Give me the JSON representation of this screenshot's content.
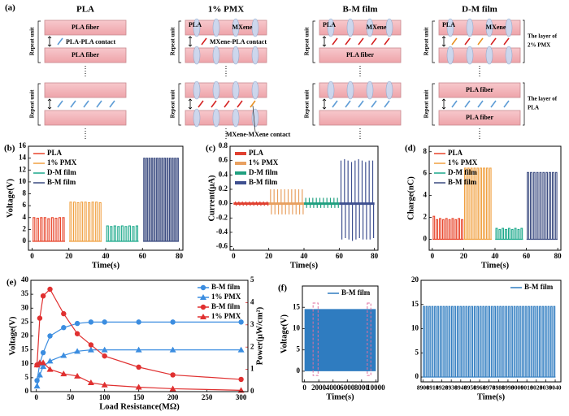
{
  "schematic": {
    "label": "(a)",
    "titles": [
      "PLA",
      "1% PMX",
      "B-M film",
      "D-M film"
    ],
    "pla_fiber": "PLA fiber",
    "repeat_unit": "Repeat unit",
    "pla_pla_contact": "PLA-PLA contact",
    "pla": "PLA",
    "mxene": "MXene",
    "mxene_pla_contact": "MXene-PLA contact",
    "mxene_mxene_contact": "MXene-MXene contact",
    "layer_pmx": [
      "The layer of",
      "2% PMX"
    ],
    "layer_pla": [
      "The layer of",
      "PLA"
    ]
  },
  "chart_data": [
    {
      "type": "pulse",
      "label": "(b)",
      "xlabel": "Time(s)",
      "ylabel": "Voltage(V)",
      "xlim": [
        -2,
        82
      ],
      "ylim": [
        -1.5,
        16
      ],
      "xticks": [
        0,
        20,
        40,
        60,
        80
      ],
      "yticks": [
        0,
        2,
        4,
        6,
        8,
        10,
        12,
        14,
        16
      ],
      "legend": "upper left",
      "series": [
        {
          "name": "PLA",
          "color": "#e8442a",
          "x": [
            1,
            3,
            5,
            7,
            9,
            11,
            13,
            15,
            17
          ],
          "values": [
            4.0,
            3.9,
            4.0,
            4.0,
            3.8,
            4.0,
            3.9,
            4.0,
            4.0
          ]
        },
        {
          "name": "1% PMX",
          "color": "#f0a040",
          "x": [
            21,
            23,
            25,
            27,
            29,
            31,
            33,
            35,
            37
          ],
          "values": [
            6.6,
            6.6,
            6.5,
            6.6,
            6.6,
            6.5,
            6.6,
            6.6,
            6.5
          ]
        },
        {
          "name": "D-M film",
          "color": "#1aa88a",
          "x": [
            41,
            43,
            45,
            47,
            49,
            51,
            53,
            55,
            57
          ],
          "values": [
            2.6,
            2.5,
            2.6,
            2.5,
            2.6,
            2.5,
            2.6,
            2.5,
            2.6
          ]
        },
        {
          "name": "B-M film",
          "color": "#3b4b80",
          "x": [
            61,
            62.4,
            63.8,
            65.2,
            66.6,
            68,
            69.4,
            70.8,
            72.2,
            73.6,
            75,
            76.4,
            77.8,
            79.2
          ],
          "values": [
            14,
            14,
            14,
            14,
            14,
            14,
            14,
            14,
            14,
            14,
            14,
            14,
            14,
            14
          ]
        }
      ]
    },
    {
      "type": "spike",
      "label": "(c)",
      "xlabel": "Time(s)",
      "ylabel": "Current(μA)",
      "xlim": [
        -2,
        82
      ],
      "ylim": [
        -0.65,
        0.8
      ],
      "xticks": [
        0,
        20,
        40,
        60,
        80
      ],
      "yticks": [
        -0.6,
        -0.4,
        -0.2,
        {
          "value": 0,
          "label": "0.0"
        },
        0.2,
        0.4,
        0.6,
        0.8
      ],
      "legend": "upper left",
      "series": [
        {
          "name": "PLA",
          "color": "#e04030",
          "x": [
            1,
            3,
            5,
            7,
            9,
            11,
            13,
            15,
            17,
            19
          ],
          "values": [
            0.03,
            0.03,
            0.03,
            0.03,
            0.03,
            0.03,
            0.03,
            0.03,
            0.03,
            0.03
          ],
          "troughs": [
            -0.03,
            -0.03,
            -0.03,
            -0.03,
            -0.03,
            -0.03,
            -0.03,
            -0.03,
            -0.03,
            -0.03
          ]
        },
        {
          "name": "1% PMX",
          "color": "#e8a060",
          "x": [
            21,
            23,
            25,
            27,
            29,
            31,
            33,
            35,
            37,
            39
          ],
          "values": [
            0.2,
            0.2,
            0.2,
            0.2,
            0.2,
            0.2,
            0.2,
            0.2,
            0.2,
            0.2
          ],
          "troughs": [
            -0.15,
            -0.15,
            -0.15,
            -0.15,
            -0.15,
            -0.15,
            -0.15,
            -0.15,
            -0.15,
            -0.15
          ]
        },
        {
          "name": "D-M film",
          "color": "#20a080",
          "x": [
            41,
            43,
            45,
            47,
            49,
            51,
            53,
            55,
            57,
            59
          ],
          "values": [
            0.08,
            0.08,
            0.08,
            0.08,
            0.08,
            0.08,
            0.08,
            0.08,
            0.08,
            0.08
          ],
          "troughs": [
            -0.06,
            -0.06,
            -0.06,
            -0.06,
            -0.06,
            -0.06,
            -0.06,
            -0.06,
            -0.06,
            -0.06
          ]
        },
        {
          "name": "B-M film",
          "color": "#3f5090",
          "x": [
            61,
            63,
            65,
            67,
            69,
            71,
            73,
            75,
            77,
            79
          ],
          "values": [
            0.6,
            0.62,
            0.6,
            0.58,
            0.6,
            0.62,
            0.6,
            0.58,
            0.6,
            0.6
          ],
          "troughs": [
            -0.5,
            -0.48,
            -0.5,
            -0.52,
            -0.5,
            -0.48,
            -0.5,
            -0.5,
            -0.5,
            -0.48
          ]
        }
      ]
    },
    {
      "type": "pulse",
      "label": "(d)",
      "xlabel": "Time(s)",
      "ylabel": "Charge(nC)",
      "xlim": [
        -2,
        82
      ],
      "ylim": [
        -1,
        8.5
      ],
      "xticks": [
        0,
        20,
        40,
        60,
        80
      ],
      "yticks": [
        0,
        2,
        4,
        6,
        8
      ],
      "legend": "upper left",
      "series": [
        {
          "name": "PLA",
          "color": "#e8442a",
          "x": [
            1,
            3,
            5,
            7,
            9,
            11,
            13,
            15,
            17,
            19
          ],
          "values": [
            2.1,
            1.8,
            1.9,
            1.8,
            1.9,
            1.8,
            1.9,
            1.8,
            1.9,
            1.8
          ]
        },
        {
          "name": "1% PMX",
          "color": "#f0a040",
          "x": [
            21,
            23,
            25,
            27,
            29,
            31,
            33,
            35,
            37
          ],
          "values": [
            6.5,
            6.5,
            6.5,
            6.5,
            6.5,
            6.5,
            6.5,
            6.5,
            6.5
          ]
        },
        {
          "name": "D-M film",
          "color": "#1aa88a",
          "x": [
            41,
            43,
            45,
            47,
            49,
            51,
            53,
            55,
            57
          ],
          "values": [
            1.0,
            0.9,
            1.0,
            0.9,
            1.0,
            0.9,
            1.0,
            0.9,
            1.0
          ]
        },
        {
          "name": "B-M film",
          "color": "#3b4b80",
          "x": [
            61,
            63,
            65,
            67,
            69,
            71,
            73,
            75,
            77,
            79
          ],
          "values": [
            6.1,
            6.1,
            6.1,
            6.1,
            6.1,
            6.1,
            6.1,
            6.1,
            6.1,
            6.1
          ]
        }
      ]
    },
    {
      "type": "line",
      "label": "(e)",
      "xlabel": "Load Resistance(MΩ)",
      "ylabel": "Voltage(V)",
      "y2label": "Power(μW/cm²)",
      "ylabel_color": "#3b8de0",
      "y2_color": "#e03030",
      "xlim": [
        -8,
        310
      ],
      "ylim": [
        0,
        40
      ],
      "y2lim": [
        0,
        5
      ],
      "xticks": [
        0,
        50,
        100,
        150,
        200,
        250,
        300
      ],
      "yticks": [
        0,
        5,
        10,
        15,
        20,
        25,
        30,
        35,
        40
      ],
      "y2ticks": [
        0,
        1,
        2,
        3,
        4,
        5
      ],
      "legend": "upper right",
      "x": [
        1,
        5,
        10,
        20,
        40,
        60,
        80,
        100,
        150,
        200,
        300
      ],
      "series": [
        {
          "name": "B-M film",
          "color": "#3b8de0",
          "marker": "circle",
          "values": [
            4,
            10,
            14,
            20,
            23,
            24.5,
            25,
            25,
            25,
            25,
            25
          ]
        },
        {
          "name": "1% PMX",
          "color": "#3b8de0",
          "marker": "triangle",
          "values": [
            2,
            6,
            9,
            11,
            13,
            14.5,
            15,
            15,
            15,
            15,
            15
          ]
        },
        {
          "name": "B-M film",
          "color": "#e03030",
          "marker": "circle",
          "axis": "y2",
          "values": [
            1.2,
            3.3,
            4.3,
            4.6,
            3.5,
            2.6,
            2.1,
            1.6,
            1.1,
            0.75,
            0.55
          ]
        },
        {
          "name": "1% PMX",
          "color": "#e03030",
          "marker": "triangle",
          "axis": "y2",
          "values": [
            1.2,
            1.3,
            1.3,
            1.0,
            0.8,
            0.7,
            0.4,
            0.3,
            0.2,
            0.13,
            0.06
          ]
        }
      ]
    },
    {
      "type": "band",
      "label": "(f)",
      "xlabel": "Time(s)",
      "ylabel": "Voltage(V)",
      "xlim": [
        -300,
        10300
      ],
      "ylim": [
        -2.5,
        20
      ],
      "xticks": [
        0,
        2000,
        4000,
        6000,
        8000,
        10000
      ],
      "yticks": [
        0,
        5,
        10,
        15
      ],
      "legend": "upper right",
      "series": [
        {
          "name": "B-M film",
          "color": "#2f7cc0",
          "x": [
            0,
            10000
          ],
          "values": [
            14.6,
            14.6
          ],
          "lower": [
            0,
            0
          ]
        }
      ]
    },
    {
      "type": "pulse",
      "xlabel": "Time(s)",
      "xlim": [
        8898,
        9046
      ],
      "ylim": [
        -1,
        20
      ],
      "xticks": [
        8900,
        8910,
        8920,
        8930,
        8940,
        8950,
        8960,
        8970,
        8980,
        8990,
        9000,
        9010,
        9020,
        9030,
        9040
      ],
      "yticks": [
        0,
        5,
        10,
        15,
        20
      ],
      "legend": "upper right",
      "series": [
        {
          "name": "B-M film",
          "color": "#2f7cc0",
          "x": [
            8901,
            8904,
            8907,
            8910,
            8913,
            8916,
            8919,
            8922,
            8925,
            8928,
            8931,
            8934,
            8937,
            8940,
            8943,
            8946,
            8949,
            8952,
            8955,
            8958,
            8961,
            8964,
            8967,
            8970,
            8973,
            8976,
            8979,
            8982,
            8985,
            8988,
            8991,
            8994,
            8997,
            9000,
            9003,
            9006,
            9009,
            9012,
            9015,
            9018,
            9021,
            9024,
            9027,
            9030,
            9033,
            9036,
            9039
          ],
          "values": [
            14.6,
            14.6,
            14.6,
            14.6,
            14.6,
            14.6,
            14.6,
            14.6,
            14.6,
            14.6,
            14.6,
            14.6,
            14.6,
            14.6,
            14.6,
            14.6,
            14.6,
            14.6,
            14.6,
            14.6,
            14.6,
            14.6,
            14.6,
            14.6,
            14.6,
            14.6,
            14.6,
            14.6,
            14.6,
            14.6,
            14.6,
            14.6,
            14.6,
            14.6,
            14.6,
            14.6,
            14.6,
            14.6,
            14.6,
            14.6,
            14.6,
            14.6,
            14.6,
            14.6,
            14.6,
            14.6,
            14.6
          ]
        }
      ]
    }
  ]
}
